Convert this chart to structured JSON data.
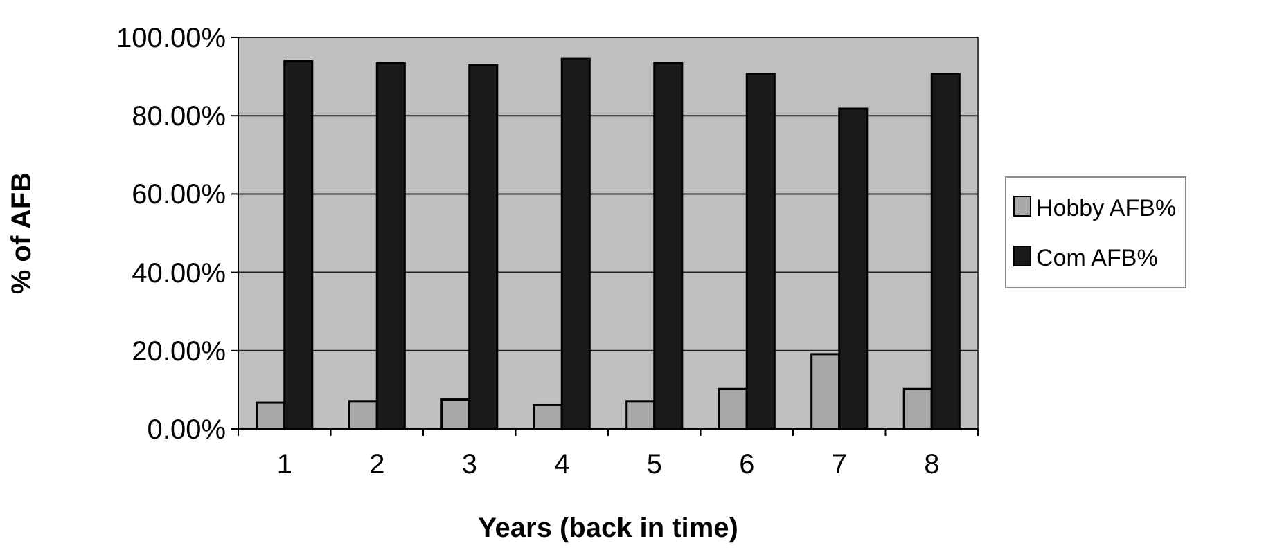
{
  "chart_data": {
    "type": "bar",
    "xlabel": "Years (back in time)",
    "ylabel": "% of AFB",
    "categories": [
      "1",
      "2",
      "3",
      "4",
      "5",
      "6",
      "7",
      "8"
    ],
    "series": [
      {
        "name": "Hobby AFB%",
        "color": "#a8a8a8",
        "values": [
          6.7,
          7.1,
          7.5,
          6.1,
          7.1,
          10.2,
          19.1,
          10.2
        ]
      },
      {
        "name": "Com AFB%",
        "color": "#1a1a1a",
        "values": [
          93.9,
          93.4,
          92.9,
          94.5,
          93.4,
          90.6,
          81.8,
          90.6
        ]
      }
    ],
    "ylim": [
      0,
      100
    ],
    "yticks": [
      {
        "value": 0,
        "label": "0.00%"
      },
      {
        "value": 20,
        "label": "20.00%"
      },
      {
        "value": 40,
        "label": "40.00%"
      },
      {
        "value": 60,
        "label": "60.00%"
      },
      {
        "value": 80,
        "label": "80.00%"
      },
      {
        "value": 100,
        "label": "100.00%"
      }
    ],
    "grid": "y",
    "legend": "right"
  }
}
